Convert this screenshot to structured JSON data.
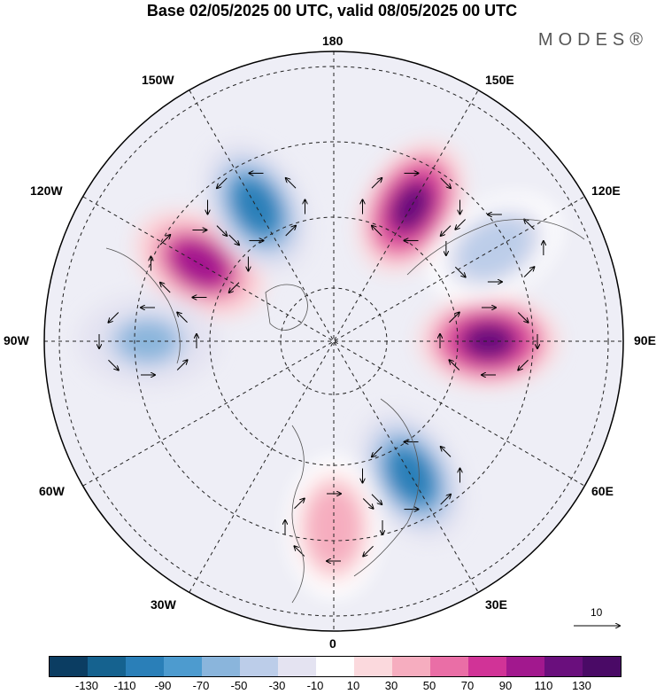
{
  "header": {
    "title": "Base 02/05/2025 00 UTC, valid 08/05/2025 00 UTC",
    "brand": "MODES®"
  },
  "map": {
    "projection": "north-polar-stereographic",
    "longitude_labels": [
      "180",
      "150E",
      "120E",
      "90E",
      "60E",
      "30E",
      "0",
      "30W",
      "60W",
      "90W",
      "120W",
      "150W"
    ],
    "reference_vector_label": "10",
    "anomaly_centers": [
      {
        "sign": "positive",
        "intensity": 130,
        "lon_label": "150E"
      },
      {
        "sign": "positive",
        "intensity": 130,
        "lon_label": "90E"
      },
      {
        "sign": "positive",
        "intensity": 110,
        "lon_label": "120W"
      },
      {
        "sign": "negative",
        "intensity": -110,
        "lon_label": "150W"
      },
      {
        "sign": "negative",
        "intensity": -110,
        "lon_label": "30E"
      },
      {
        "sign": "negative",
        "intensity": -70,
        "lon_label": "90W"
      },
      {
        "sign": "negative",
        "intensity": -50,
        "lon_label": "120E"
      },
      {
        "sign": "positive",
        "intensity": 50,
        "lon_label": "0"
      }
    ]
  },
  "colorbar": {
    "ticks": [
      "-130",
      "-110",
      "-90",
      "-70",
      "-50",
      "-30",
      "-10",
      "10",
      "30",
      "50",
      "70",
      "90",
      "110",
      "130"
    ],
    "colors": [
      "#0b3d62",
      "#15628f",
      "#2a7fb8",
      "#4d9bcf",
      "#8ab5dc",
      "#bccde9",
      "#e4e3f1",
      "#ffffff",
      "#fbd9dd",
      "#f6adbf",
      "#ea6ea6",
      "#d13397",
      "#a2188e",
      "#6a0f7d",
      "#4a0a66"
    ]
  }
}
